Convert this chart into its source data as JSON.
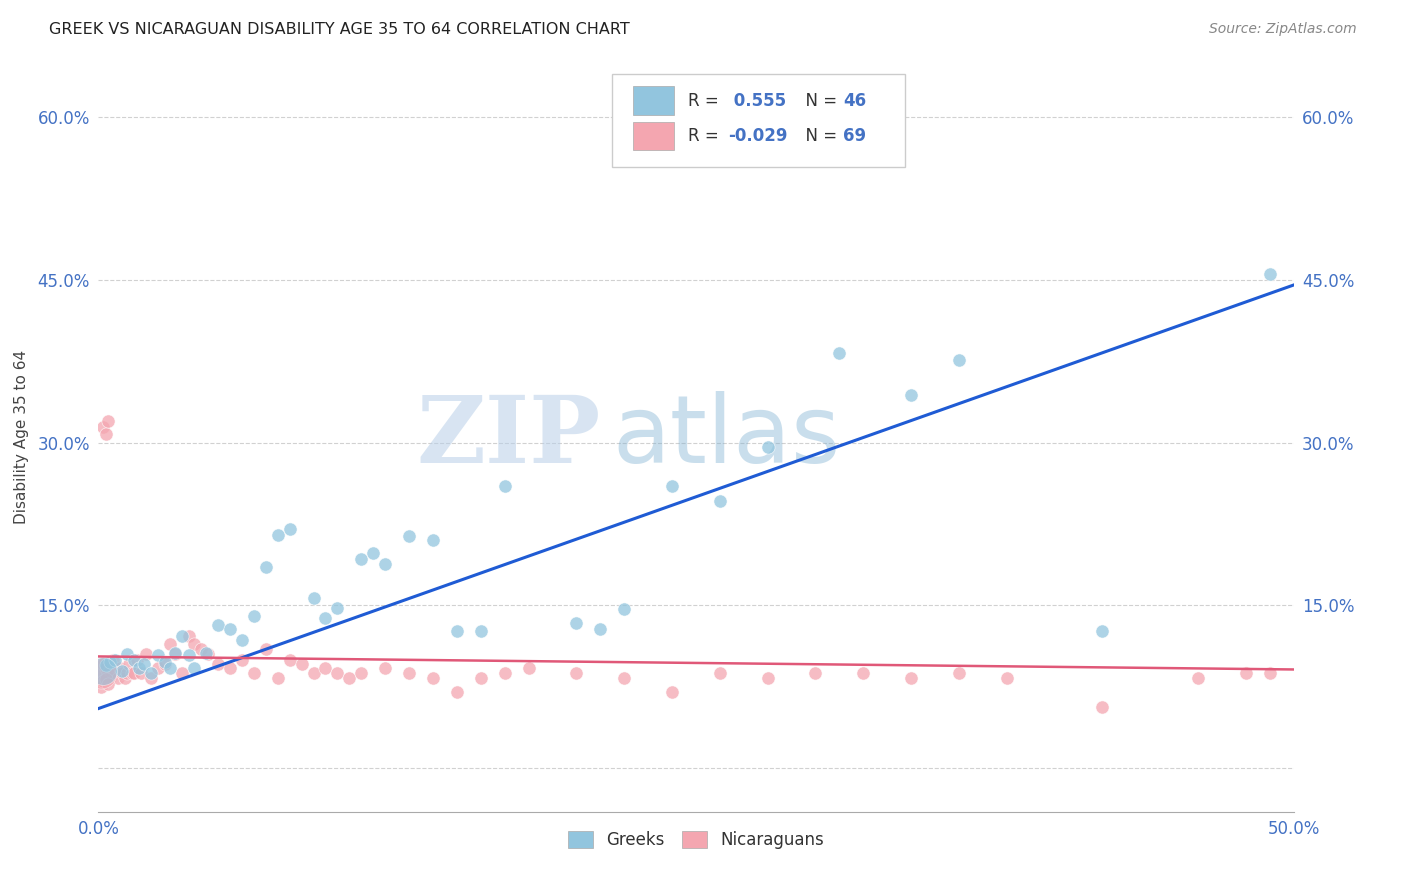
{
  "title": "GREEK VS NICARAGUAN DISABILITY AGE 35 TO 64 CORRELATION CHART",
  "source": "Source: ZipAtlas.com",
  "ylabel": "Disability Age 35 to 64",
  "xlim": [
    0.0,
    0.5
  ],
  "ylim": [
    -0.04,
    0.65
  ],
  "greek_R": "0.555",
  "greek_N": "46",
  "nicaraguan_R": "-0.029",
  "nicaraguan_N": "69",
  "greek_color": "#92c5de",
  "nicaraguan_color": "#f4a6b0",
  "greek_line_color": "#1f5bd4",
  "nicaraguan_line_color": "#e05878",
  "watermark_zip": "ZIP",
  "watermark_atlas": "atlas",
  "background_color": "#ffffff",
  "grid_color": "#cccccc",
  "tick_color": "#4472c4",
  "legend_R_color": "#4472c4",
  "greek_line_x": [
    0.0,
    0.5
  ],
  "greek_line_y": [
    0.055,
    0.445
  ],
  "nic_line_x": [
    0.0,
    0.5
  ],
  "nic_line_y": [
    0.103,
    0.091
  ],
  "greeks_x": [
    0.003,
    0.005,
    0.007,
    0.01,
    0.012,
    0.015,
    0.017,
    0.019,
    0.022,
    0.025,
    0.028,
    0.03,
    0.032,
    0.035,
    0.038,
    0.04,
    0.045,
    0.05,
    0.055,
    0.06,
    0.065,
    0.07,
    0.075,
    0.08,
    0.09,
    0.095,
    0.1,
    0.11,
    0.115,
    0.12,
    0.13,
    0.14,
    0.15,
    0.16,
    0.17,
    0.2,
    0.21,
    0.22,
    0.24,
    0.26,
    0.28,
    0.31,
    0.34,
    0.36,
    0.42,
    0.49
  ],
  "greeks_y": [
    0.095,
    0.098,
    0.1,
    0.09,
    0.105,
    0.1,
    0.092,
    0.096,
    0.088,
    0.104,
    0.098,
    0.092,
    0.106,
    0.122,
    0.104,
    0.092,
    0.106,
    0.132,
    0.128,
    0.118,
    0.14,
    0.185,
    0.215,
    0.22,
    0.157,
    0.138,
    0.148,
    0.193,
    0.198,
    0.188,
    0.214,
    0.21,
    0.126,
    0.126,
    0.26,
    0.134,
    0.128,
    0.147,
    0.26,
    0.246,
    0.296,
    0.382,
    0.344,
    0.376,
    0.126,
    0.455
  ],
  "greeks_sizes": [
    80,
    80,
    80,
    80,
    80,
    80,
    80,
    80,
    80,
    80,
    80,
    80,
    80,
    80,
    80,
    80,
    80,
    80,
    80,
    80,
    80,
    80,
    80,
    80,
    80,
    80,
    80,
    80,
    80,
    80,
    80,
    80,
    80,
    80,
    80,
    80,
    80,
    80,
    80,
    80,
    80,
    80,
    80,
    80,
    80,
    80
  ],
  "nicaraguans_x": [
    0.001,
    0.002,
    0.003,
    0.004,
    0.005,
    0.006,
    0.007,
    0.008,
    0.009,
    0.01,
    0.011,
    0.012,
    0.013,
    0.014,
    0.015,
    0.016,
    0.018,
    0.02,
    0.022,
    0.025,
    0.028,
    0.03,
    0.032,
    0.035,
    0.038,
    0.04,
    0.043,
    0.046,
    0.05,
    0.055,
    0.06,
    0.065,
    0.07,
    0.075,
    0.08,
    0.085,
    0.09,
    0.095,
    0.1,
    0.105,
    0.11,
    0.12,
    0.13,
    0.14,
    0.15,
    0.16,
    0.17,
    0.18,
    0.2,
    0.22,
    0.24,
    0.26,
    0.28,
    0.3,
    0.32,
    0.34,
    0.36,
    0.38,
    0.42,
    0.46,
    0.48,
    0.49,
    0.002,
    0.003,
    0.004,
    0.001,
    0.002,
    0.003,
    0.004
  ],
  "nicaraguans_y": [
    0.088,
    0.096,
    0.092,
    0.088,
    0.083,
    0.1,
    0.088,
    0.083,
    0.092,
    0.088,
    0.083,
    0.088,
    0.096,
    0.088,
    0.088,
    0.1,
    0.088,
    0.105,
    0.083,
    0.092,
    0.096,
    0.114,
    0.105,
    0.088,
    0.122,
    0.114,
    0.11,
    0.105,
    0.096,
    0.092,
    0.1,
    0.088,
    0.11,
    0.083,
    0.1,
    0.096,
    0.088,
    0.092,
    0.088,
    0.083,
    0.088,
    0.092,
    0.088,
    0.083,
    0.07,
    0.083,
    0.088,
    0.092,
    0.088,
    0.083,
    0.07,
    0.088,
    0.083,
    0.088,
    0.088,
    0.083,
    0.088,
    0.083,
    0.056,
    0.083,
    0.088,
    0.088,
    0.314,
    0.308,
    0.32,
    0.075,
    0.08,
    0.082,
    0.078
  ],
  "nic_big_x": [
    0.001
  ],
  "nic_big_y": [
    0.088
  ],
  "nic_big_size": [
    600
  ]
}
